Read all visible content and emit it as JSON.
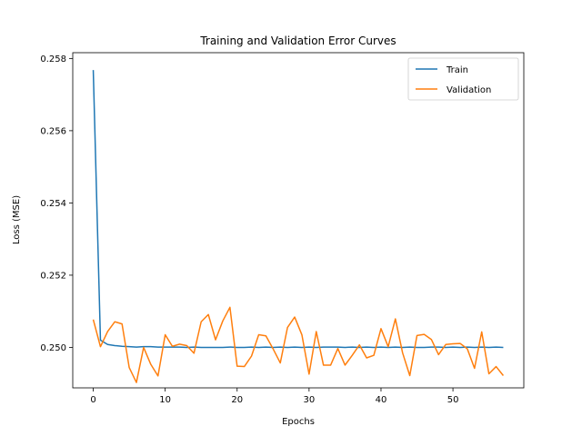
{
  "chart_data": {
    "type": "line",
    "title": "Training and Validation Error Curves",
    "xlabel": "Epochs",
    "ylabel": "Loss (MSE)",
    "xlim": [
      -2.85,
      59.85
    ],
    "ylim": [
      0.24888,
      0.25816
    ],
    "xticks": [
      0,
      10,
      20,
      30,
      40,
      50
    ],
    "yticks": [
      0.25,
      0.252,
      0.254,
      0.256,
      0.258
    ],
    "legend_position": "top-right",
    "grid": false,
    "series": [
      {
        "name": "Train",
        "color": "#1f77b4",
        "x": [
          0,
          1,
          2,
          3,
          4,
          5,
          6,
          7,
          8,
          9,
          10,
          11,
          12,
          13,
          14,
          15,
          16,
          17,
          18,
          19,
          20,
          21,
          22,
          23,
          24,
          25,
          26,
          27,
          28,
          29,
          30,
          31,
          32,
          33,
          34,
          35,
          36,
          37,
          38,
          39,
          40,
          41,
          42,
          43,
          44,
          45,
          46,
          47,
          48,
          49,
          50,
          51,
          52,
          53,
          54,
          55,
          56,
          57
        ],
        "values": [
          0.25768,
          0.2502,
          0.25008,
          0.25005,
          0.25003,
          0.25002,
          0.25001,
          0.25002,
          0.25002,
          0.25001,
          0.25001,
          0.25001,
          0.25001,
          0.25,
          0.25001,
          0.25,
          0.25,
          0.25,
          0.25,
          0.25001,
          0.25,
          0.25,
          0.25001,
          0.25,
          0.25001,
          0.25,
          0.25001,
          0.25,
          0.25001,
          0.25,
          0.25001,
          0.25,
          0.25001,
          0.25001,
          0.25001,
          0.25,
          0.25001,
          0.25,
          0.25001,
          0.25,
          0.25001,
          0.25,
          0.25001,
          0.25,
          0.25001,
          0.25,
          0.25,
          0.25001,
          0.25001,
          0.25,
          0.25001,
          0.25,
          0.25001,
          0.25,
          0.25001,
          0.25,
          0.25001,
          0.25
        ]
      },
      {
        "name": "Validation",
        "color": "#ff7f0e",
        "x": [
          0,
          1,
          2,
          3,
          4,
          5,
          6,
          7,
          8,
          9,
          10,
          11,
          12,
          13,
          14,
          15,
          16,
          17,
          18,
          19,
          20,
          21,
          22,
          23,
          24,
          25,
          26,
          27,
          28,
          29,
          30,
          31,
          32,
          33,
          34,
          35,
          36,
          37,
          38,
          39,
          40,
          41,
          42,
          43,
          44,
          45,
          46,
          47,
          48,
          49,
          50,
          51,
          52,
          53,
          54,
          55,
          56,
          57
        ],
        "values": [
          0.25077,
          0.25002,
          0.25044,
          0.25071,
          0.25065,
          0.24944,
          0.24903,
          0.25,
          0.24953,
          0.24921,
          0.25035,
          0.25003,
          0.25009,
          0.25005,
          0.24984,
          0.25071,
          0.25091,
          0.25021,
          0.25073,
          0.25111,
          0.24948,
          0.24947,
          0.24976,
          0.25035,
          0.25032,
          0.24996,
          0.24957,
          0.25055,
          0.25084,
          0.25035,
          0.24926,
          0.25044,
          0.24951,
          0.24951,
          0.24997,
          0.24951,
          0.24978,
          0.25007,
          0.24971,
          0.24978,
          0.25052,
          0.25002,
          0.25079,
          0.24985,
          0.24922,
          0.25033,
          0.25036,
          0.25022,
          0.2498,
          0.25008,
          0.2501,
          0.25011,
          0.24996,
          0.24942,
          0.25043,
          0.24927,
          0.24947,
          0.24922
        ]
      }
    ]
  }
}
